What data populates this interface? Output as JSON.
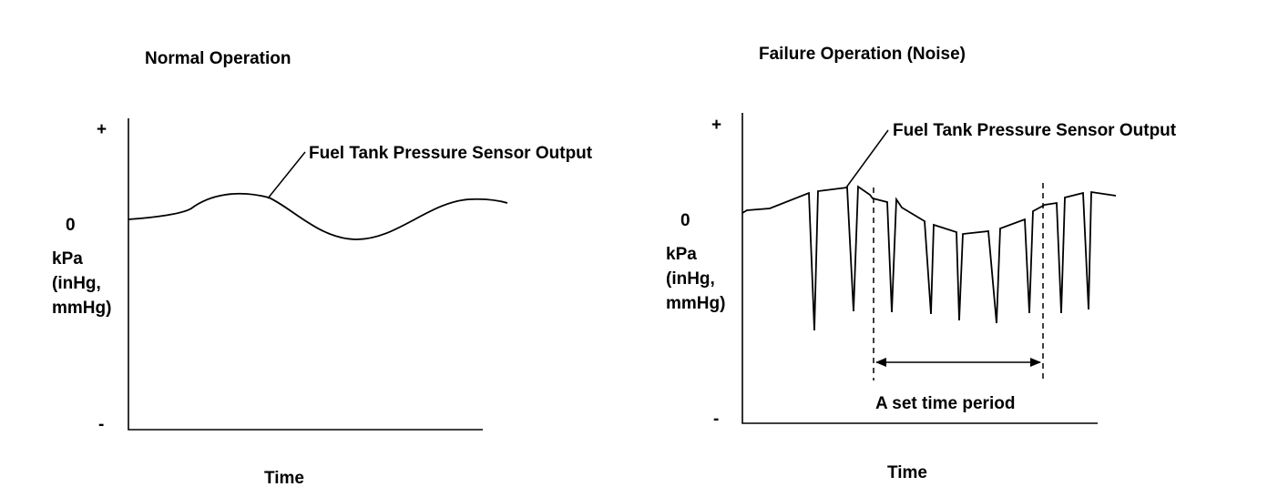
{
  "left_panel": {
    "title": "Normal Operation",
    "y_plus": "+",
    "y_zero": "0",
    "y_minus": "-",
    "y_unit_line1": "kPa",
    "y_unit_line2": "(inHg,",
    "y_unit_line3": "mmHg)",
    "x_label": "Time",
    "curve_label": "Fuel Tank Pressure Sensor Output"
  },
  "right_panel": {
    "title": "Failure Operation (Noise)",
    "y_plus": "+",
    "y_zero": "0",
    "y_minus": "-",
    "y_unit_line1": "kPa",
    "y_unit_line2": "(inHg,",
    "y_unit_line3": "mmHg)",
    "x_label": "Time",
    "curve_label": "Fuel Tank Pressure Sensor Output",
    "period_label": "A set time period"
  }
}
